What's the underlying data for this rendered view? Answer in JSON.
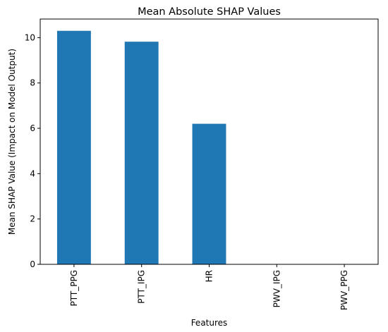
{
  "chart_data": {
    "type": "bar",
    "title": "Mean Absolute SHAP Values",
    "xlabel": "Features",
    "ylabel": "Mean SHAP Value (Impact on Model Output)",
    "categories": [
      "PTT_PPG",
      "PTT_IPG",
      "HR",
      "PWV_IPG",
      "PWV_PPG"
    ],
    "values": [
      10.3,
      9.82,
      6.2,
      0.0,
      0.0
    ],
    "ylim": [
      0,
      10.82
    ],
    "yticks": [
      0,
      2,
      4,
      6,
      8,
      10
    ],
    "bar_color": "#1f77b4",
    "grid": false,
    "legend": "none"
  }
}
